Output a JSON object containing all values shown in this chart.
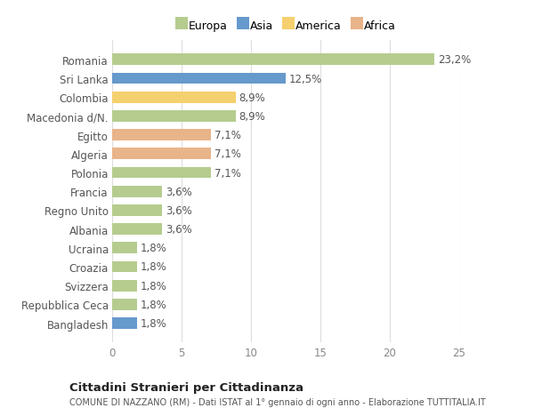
{
  "categories": [
    "Romania",
    "Sri Lanka",
    "Colombia",
    "Macedonia d/N.",
    "Egitto",
    "Algeria",
    "Polonia",
    "Francia",
    "Regno Unito",
    "Albania",
    "Ucraina",
    "Croazia",
    "Svizzera",
    "Repubblica Ceca",
    "Bangladesh"
  ],
  "values": [
    23.2,
    12.5,
    8.9,
    8.9,
    7.1,
    7.1,
    7.1,
    3.6,
    3.6,
    3.6,
    1.8,
    1.8,
    1.8,
    1.8,
    1.8
  ],
  "labels": [
    "23,2%",
    "12,5%",
    "8,9%",
    "8,9%",
    "7,1%",
    "7,1%",
    "7,1%",
    "3,6%",
    "3,6%",
    "3,6%",
    "1,8%",
    "1,8%",
    "1,8%",
    "1,8%",
    "1,8%"
  ],
  "bar_colors": [
    "#b5cc8e",
    "#6699cc",
    "#f5d06e",
    "#b5cc8e",
    "#e8b48a",
    "#e8b48a",
    "#b5cc8e",
    "#b5cc8e",
    "#b5cc8e",
    "#b5cc8e",
    "#b5cc8e",
    "#b5cc8e",
    "#b5cc8e",
    "#b5cc8e",
    "#6699cc"
  ],
  "legend_labels": [
    "Europa",
    "Asia",
    "America",
    "Africa"
  ],
  "legend_colors": [
    "#b5cc8e",
    "#6699cc",
    "#f5d06e",
    "#e8b48a"
  ],
  "xlim": [
    0,
    25
  ],
  "xticks": [
    0,
    5,
    10,
    15,
    20,
    25
  ],
  "title": "Cittadini Stranieri per Cittadinanza",
  "subtitle": "COMUNE DI NAZZANO (RM) - Dati ISTAT al 1° gennaio di ogni anno - Elaborazione TUTTITALIA.IT",
  "bg_color": "#ffffff",
  "grid_color": "#dddddd",
  "bar_height": 0.6,
  "label_fontsize": 8.5,
  "tick_fontsize": 8.5,
  "yticklabel_fontsize": 8.5
}
